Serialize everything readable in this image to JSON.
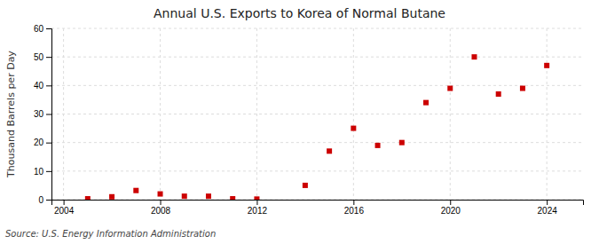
{
  "chart_data": {
    "type": "scatter",
    "title": "Annual U.S. Exports to Korea of Normal Butane",
    "ylabel": "Thousand Barrels per Day",
    "source": "Source: U.S. Energy Information Administration",
    "x": [
      2005,
      2006,
      2007,
      2008,
      2009,
      2010,
      2011,
      2012,
      2014,
      2015,
      2016,
      2017,
      2018,
      2019,
      2020,
      2021,
      2022,
      2023,
      2024
    ],
    "values": [
      0.3,
      1.0,
      3.2,
      2.0,
      1.2,
      1.2,
      0.3,
      0.2,
      5.0,
      17.0,
      25.0,
      19.0,
      20.0,
      34.0,
      39.0,
      50.0,
      37.0,
      39.0,
      47.0
    ],
    "color": "#cc0000",
    "marker": "square",
    "xlim": [
      2003.5,
      2025.5
    ],
    "ylim": [
      0,
      60
    ],
    "xticks": [
      2004,
      2008,
      2012,
      2016,
      2020,
      2024
    ],
    "yticks": [
      0,
      10,
      20,
      30,
      40,
      50,
      60
    ],
    "grid": true
  }
}
